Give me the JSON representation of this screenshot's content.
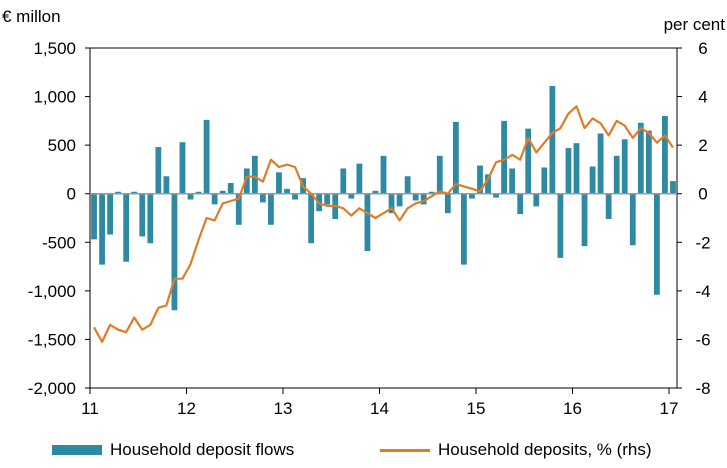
{
  "chart_data": {
    "type": "bar+line",
    "ylabel_left": "€ millon",
    "ylabel_right": "per cent",
    "ylim_left": [
      -2000,
      1500
    ],
    "yticks_left": [
      "1,500",
      "1,000",
      "500",
      "0",
      "-500",
      "-1,000",
      "-1,500",
      "-2,000"
    ],
    "ylim_right": [
      -8,
      6
    ],
    "yticks_right": [
      "6",
      "4",
      "2",
      "0",
      "-2",
      "-4",
      "-6",
      "-8"
    ],
    "xlim": [
      11,
      17.083
    ],
    "xticks": [
      "11",
      "12",
      "13",
      "14",
      "15",
      "16",
      "17"
    ],
    "grid": false,
    "legend_position": "bottom",
    "colors": {
      "bars": "#2E8AA3",
      "line": "#E07B28"
    },
    "series": [
      {
        "name": "Household deposit flows",
        "type": "bar",
        "axis": "left",
        "values": [
          -470,
          -730,
          -420,
          20,
          -700,
          20,
          -440,
          -510,
          480,
          180,
          -1200,
          530,
          -60,
          20,
          760,
          -110,
          30,
          110,
          -320,
          260,
          390,
          -90,
          -320,
          220,
          50,
          -60,
          160,
          -510,
          -180,
          -110,
          -260,
          260,
          -50,
          310,
          -590,
          30,
          390,
          -200,
          -130,
          180,
          -70,
          -110,
          20,
          390,
          -200,
          740,
          -730,
          -50,
          290,
          200,
          -40,
          750,
          260,
          -210,
          670,
          -130,
          270,
          1110,
          -660,
          470,
          520,
          -540,
          280,
          620,
          -260,
          390,
          560,
          -530,
          730,
          650,
          -1040,
          800,
          130
        ]
      },
      {
        "name": "Household deposits, % (rhs)",
        "type": "line",
        "axis": "right",
        "values": [
          -5.5,
          -6.1,
          -5.4,
          -5.6,
          -5.7,
          -5.1,
          -5.6,
          -5.4,
          -4.7,
          -4.6,
          -3.5,
          -3.5,
          -2.9,
          -1.9,
          -1.0,
          -1.1,
          -0.4,
          -0.3,
          -0.2,
          0.7,
          0.7,
          0.5,
          1.4,
          1.1,
          1.2,
          1.1,
          0.3,
          0.0,
          -0.4,
          -0.5,
          -0.5,
          -0.6,
          -0.9,
          -0.6,
          -0.8,
          -1.0,
          -0.8,
          -0.6,
          -1.1,
          -0.6,
          -0.4,
          -0.3,
          -0.1,
          0.1,
          0.0,
          0.4,
          0.3,
          0.2,
          0.1,
          0.6,
          1.3,
          1.4,
          1.6,
          1.4,
          2.3,
          1.7,
          2.1,
          2.5,
          2.7,
          3.3,
          3.6,
          2.7,
          3.1,
          2.9,
          2.4,
          3.0,
          2.8,
          2.3,
          2.7,
          2.5,
          2.1,
          2.4,
          1.9
        ]
      }
    ]
  }
}
